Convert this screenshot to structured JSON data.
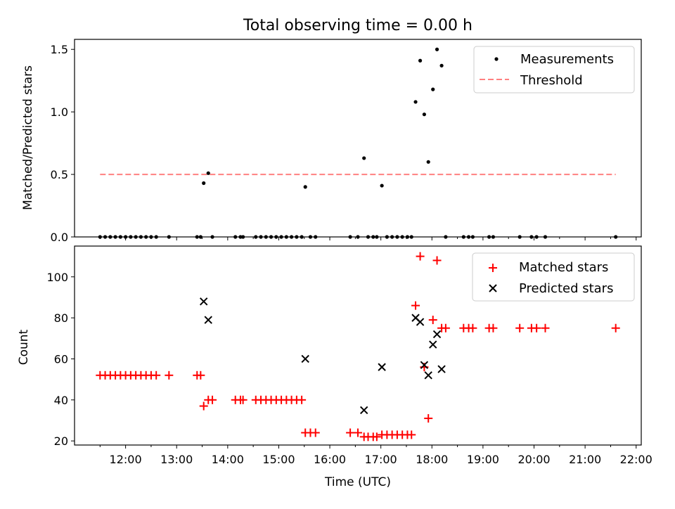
{
  "chart_data": [
    {
      "type": "scatter",
      "title": "Total observing time = 0.00 h",
      "xlabel": "",
      "ylabel": "Matched/Predicted stars",
      "xlim": [
        11.0,
        22.1
      ],
      "ylim": [
        0.0,
        1.58
      ],
      "yticks": [
        {
          "value": 0.0,
          "label": "0.0"
        },
        {
          "value": 0.5,
          "label": "0.5"
        },
        {
          "value": 1.0,
          "label": "1.0"
        },
        {
          "value": 1.5,
          "label": "1.5"
        }
      ],
      "legend": {
        "placement": "top-right",
        "entries": [
          "Measurements",
          "Threshold"
        ]
      },
      "threshold": {
        "name": "Threshold",
        "value": 0.5,
        "x_range": [
          11.5,
          21.6
        ],
        "color": "#ff8080"
      },
      "series": [
        {
          "name": "Measurements",
          "color": "#000000",
          "points": [
            [
              11.5,
              0
            ],
            [
              11.6,
              0
            ],
            [
              11.7,
              0
            ],
            [
              11.8,
              0
            ],
            [
              11.9,
              0
            ],
            [
              12.0,
              0
            ],
            [
              12.1,
              0
            ],
            [
              12.2,
              0
            ],
            [
              12.3,
              0
            ],
            [
              12.4,
              0
            ],
            [
              12.5,
              0
            ],
            [
              12.6,
              0
            ],
            [
              12.85,
              0
            ],
            [
              13.4,
              0
            ],
            [
              13.47,
              0
            ],
            [
              13.53,
              0.43
            ],
            [
              13.62,
              0.51
            ],
            [
              13.7,
              0
            ],
            [
              14.15,
              0
            ],
            [
              14.25,
              0
            ],
            [
              14.3,
              0
            ],
            [
              14.55,
              0
            ],
            [
              14.65,
              0
            ],
            [
              14.75,
              0
            ],
            [
              14.85,
              0
            ],
            [
              14.95,
              0
            ],
            [
              15.05,
              0
            ],
            [
              15.15,
              0
            ],
            [
              15.25,
              0
            ],
            [
              15.35,
              0
            ],
            [
              15.45,
              0
            ],
            [
              15.52,
              0.4
            ],
            [
              15.62,
              0
            ],
            [
              15.72,
              0
            ],
            [
              16.4,
              0
            ],
            [
              16.55,
              0
            ],
            [
              16.67,
              0.63
            ],
            [
              16.75,
              0
            ],
            [
              16.85,
              0
            ],
            [
              16.92,
              0
            ],
            [
              17.02,
              0.41
            ],
            [
              17.12,
              0
            ],
            [
              17.22,
              0
            ],
            [
              17.32,
              0
            ],
            [
              17.42,
              0
            ],
            [
              17.52,
              0
            ],
            [
              17.6,
              0
            ],
            [
              17.68,
              1.08
            ],
            [
              17.77,
              1.41
            ],
            [
              17.85,
              0.98
            ],
            [
              17.93,
              0.6
            ],
            [
              18.02,
              1.18
            ],
            [
              18.1,
              1.5
            ],
            [
              18.19,
              1.37
            ],
            [
              18.27,
              0
            ],
            [
              18.62,
              0
            ],
            [
              18.72,
              0
            ],
            [
              18.8,
              0
            ],
            [
              19.12,
              0
            ],
            [
              19.2,
              0
            ],
            [
              19.72,
              0
            ],
            [
              19.95,
              0
            ],
            [
              20.05,
              0
            ],
            [
              20.22,
              0
            ],
            [
              21.6,
              0
            ]
          ]
        }
      ]
    },
    {
      "type": "scatter",
      "title": "",
      "xlabel": "Time (UTC)",
      "ylabel": "Count",
      "xlim": [
        11.0,
        22.1
      ],
      "ylim": [
        18,
        115
      ],
      "yticks": [
        {
          "value": 20,
          "label": "20"
        },
        {
          "value": 40,
          "label": "40"
        },
        {
          "value": 60,
          "label": "60"
        },
        {
          "value": 80,
          "label": "80"
        },
        {
          "value": 100,
          "label": "100"
        }
      ],
      "xticks": [
        {
          "value": 12,
          "label": "12:00"
        },
        {
          "value": 13,
          "label": "13:00"
        },
        {
          "value": 14,
          "label": "14:00"
        },
        {
          "value": 15,
          "label": "15:00"
        },
        {
          "value": 16,
          "label": "16:00"
        },
        {
          "value": 17,
          "label": "17:00"
        },
        {
          "value": 18,
          "label": "18:00"
        },
        {
          "value": 19,
          "label": "19:00"
        },
        {
          "value": 20,
          "label": "20:00"
        },
        {
          "value": 21,
          "label": "21:00"
        },
        {
          "value": 22,
          "label": "22:00"
        }
      ],
      "legend": {
        "placement": "top-right",
        "entries": [
          "Matched stars",
          "Predicted stars"
        ]
      },
      "series": [
        {
          "name": "Matched stars",
          "color": "#ff0000",
          "marker": "plus",
          "points": [
            [
              11.5,
              52
            ],
            [
              11.6,
              52
            ],
            [
              11.7,
              52
            ],
            [
              11.8,
              52
            ],
            [
              11.9,
              52
            ],
            [
              12.0,
              52
            ],
            [
              12.1,
              52
            ],
            [
              12.2,
              52
            ],
            [
              12.3,
              52
            ],
            [
              12.4,
              52
            ],
            [
              12.5,
              52
            ],
            [
              12.6,
              52
            ],
            [
              12.85,
              52
            ],
            [
              13.4,
              52
            ],
            [
              13.47,
              52
            ],
            [
              13.53,
              37
            ],
            [
              13.62,
              40
            ],
            [
              13.7,
              40
            ],
            [
              14.15,
              40
            ],
            [
              14.25,
              40
            ],
            [
              14.3,
              40
            ],
            [
              14.55,
              40
            ],
            [
              14.65,
              40
            ],
            [
              14.75,
              40
            ],
            [
              14.85,
              40
            ],
            [
              14.95,
              40
            ],
            [
              15.05,
              40
            ],
            [
              15.15,
              40
            ],
            [
              15.25,
              40
            ],
            [
              15.35,
              40
            ],
            [
              15.45,
              40
            ],
            [
              15.52,
              24
            ],
            [
              15.62,
              24
            ],
            [
              15.72,
              24
            ],
            [
              16.4,
              24
            ],
            [
              16.55,
              24
            ],
            [
              16.67,
              22
            ],
            [
              16.75,
              22
            ],
            [
              16.85,
              22
            ],
            [
              16.92,
              22
            ],
            [
              17.02,
              23
            ],
            [
              17.12,
              23
            ],
            [
              17.22,
              23
            ],
            [
              17.32,
              23
            ],
            [
              17.42,
              23
            ],
            [
              17.52,
              23
            ],
            [
              17.6,
              23
            ],
            [
              17.68,
              86
            ],
            [
              17.77,
              110
            ],
            [
              17.85,
              56
            ],
            [
              17.93,
              31
            ],
            [
              18.02,
              79
            ],
            [
              18.1,
              108
            ],
            [
              18.19,
              75
            ],
            [
              18.27,
              75
            ],
            [
              18.62,
              75
            ],
            [
              18.72,
              75
            ],
            [
              18.8,
              75
            ],
            [
              19.12,
              75
            ],
            [
              19.2,
              75
            ],
            [
              19.72,
              75
            ],
            [
              19.95,
              75
            ],
            [
              20.05,
              75
            ],
            [
              20.22,
              75
            ],
            [
              21.6,
              75
            ]
          ]
        },
        {
          "name": "Predicted stars",
          "color": "#000000",
          "marker": "x",
          "points": [
            [
              13.53,
              88
            ],
            [
              13.62,
              79
            ],
            [
              15.52,
              60
            ],
            [
              16.67,
              35
            ],
            [
              17.02,
              56
            ],
            [
              17.68,
              80
            ],
            [
              17.77,
              78
            ],
            [
              17.85,
              57
            ],
            [
              17.93,
              52
            ],
            [
              18.02,
              67
            ],
            [
              18.1,
              72
            ],
            [
              18.19,
              55
            ]
          ]
        }
      ]
    }
  ]
}
